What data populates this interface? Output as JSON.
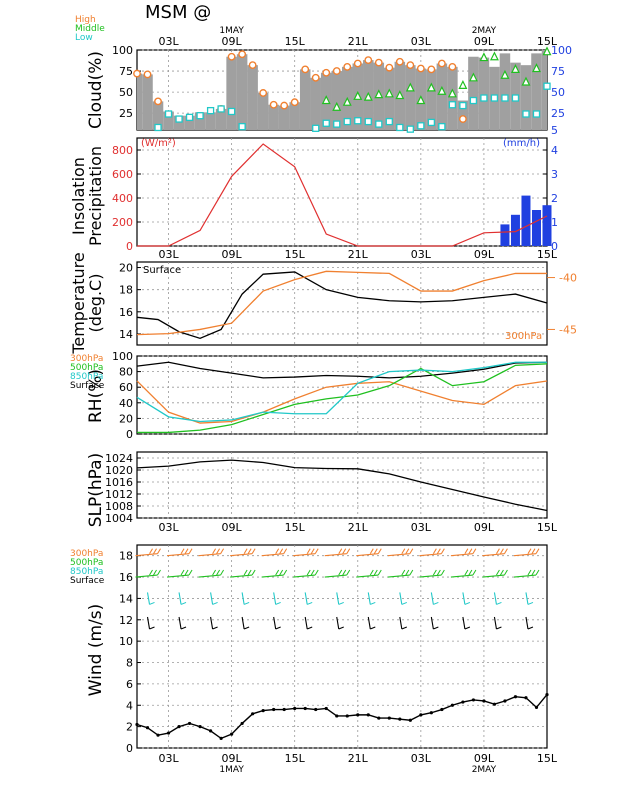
{
  "header": {
    "title": "MSM @",
    "legend": [
      {
        "label": "High",
        "color": "#f08030"
      },
      {
        "label": "Middle",
        "color": "#20c020"
      },
      {
        "label": "Low",
        "color": "#20c8c8"
      }
    ]
  },
  "time_axis": {
    "ticks": [
      "03L",
      "09L",
      "15L",
      "21L",
      "03L",
      "09L",
      "15L"
    ],
    "dates": [
      {
        "label": "1MAY",
        "at": "09L"
      },
      {
        "label": "2MAY",
        "at": "09L"
      }
    ]
  },
  "panels": {
    "cloud": {
      "ylabel": "Cloud(%)",
      "left_ticks": [
        "100",
        "75",
        "50",
        "25"
      ],
      "right_ticks": [
        "100",
        "75",
        "50",
        "25",
        "5"
      ]
    },
    "insol": {
      "ylabel1": "Insolation",
      "ylabel2": "Precipitation",
      "unit_left": "(W/m²)",
      "unit_right": "(mm/h)",
      "left_ticks": [
        "800",
        "600",
        "400",
        "200",
        "0"
      ],
      "right_ticks": [
        "4",
        "3",
        "2",
        "1",
        "0"
      ]
    },
    "temp": {
      "ylabel1": "Temperature",
      "ylabel2": "(deg.C)",
      "surface_label": "Surface",
      "p300_label": "300hPa",
      "left_ticks": [
        "20",
        "18",
        "16",
        "14"
      ],
      "right_ticks": [
        "-40",
        "-45"
      ]
    },
    "rh": {
      "ylabel": "RH(%)",
      "legend": [
        "300hPa",
        "500hPa",
        "850hPa",
        "Surface"
      ],
      "ticks": [
        "100",
        "80",
        "60",
        "40",
        "20",
        "0"
      ]
    },
    "slp": {
      "ylabel": "SLP(hPa)",
      "ticks": [
        "1024",
        "1020",
        "1016",
        "1012",
        "1008",
        "1004"
      ]
    },
    "wind": {
      "ylabel": "Wind (m/s)",
      "legend": [
        "300hPa",
        "500hPa",
        "850hPa",
        "Surface"
      ],
      "ticks": [
        "18",
        "16",
        "14",
        "12",
        "10",
        "8",
        "6",
        "4",
        "2",
        "0"
      ]
    }
  },
  "colors": {
    "high": "#f08030",
    "middle": "#20c020",
    "low": "#20c8c8",
    "insolation": "#e03030",
    "precip": "#2040e0",
    "black": "#000000",
    "cloudfill": "#a0a0a0"
  },
  "chart_data": [
    {
      "type": "area",
      "title": "Cloud(%)",
      "x_unit": "hours from 00L 30APR",
      "x": [
        0,
        1,
        2,
        3,
        4,
        5,
        6,
        7,
        8,
        9,
        10,
        11,
        12,
        13,
        14,
        15,
        16,
        17,
        18,
        19,
        20,
        21,
        22,
        23,
        24,
        25,
        26,
        27,
        28,
        29,
        30,
        31,
        32,
        33,
        34,
        35,
        36,
        37,
        38,
        39
      ],
      "series": [
        {
          "name": "Cloud total",
          "values": [
            72,
            71,
            39,
            27,
            22,
            22,
            26,
            26,
            30,
            92,
            95,
            82,
            49,
            35,
            34,
            38,
            77,
            67,
            73,
            75,
            80,
            84,
            88,
            85,
            79,
            86,
            82,
            78,
            77,
            84,
            80,
            40,
            92,
            91,
            80,
            96,
            85,
            82,
            96,
            100
          ]
        },
        {
          "name": "High",
          "values": [
            72,
            71,
            39,
            null,
            null,
            null,
            null,
            null,
            30,
            92,
            95,
            82,
            49,
            35,
            34,
            38,
            77,
            67,
            73,
            75,
            80,
            84,
            88,
            85,
            79,
            86,
            82,
            78,
            77,
            84,
            80,
            18,
            null,
            null,
            null,
            null,
            null,
            null,
            null,
            null
          ]
        },
        {
          "name": "Middle",
          "values": [
            null,
            null,
            null,
            null,
            null,
            null,
            null,
            null,
            null,
            null,
            null,
            null,
            null,
            null,
            null,
            null,
            null,
            null,
            40,
            32,
            38,
            45,
            44,
            47,
            48,
            46,
            55,
            40,
            55,
            51,
            48,
            58,
            67,
            91,
            92,
            70,
            77,
            62,
            78,
            98
          ]
        },
        {
          "name": "Low",
          "values": [
            null,
            null,
            8,
            24,
            18,
            20,
            22,
            28,
            30,
            27,
            9,
            null,
            null,
            null,
            null,
            null,
            null,
            7,
            13,
            12,
            15,
            16,
            15,
            12,
            15,
            8,
            6,
            10,
            14,
            9,
            35,
            34,
            40,
            43,
            43,
            43,
            43,
            24,
            24,
            57
          ]
        }
      ],
      "ylim": [
        5,
        100
      ]
    },
    {
      "type": "line",
      "title": "Insolation / Precipitation",
      "x_unit": "hours",
      "series": [
        {
          "name": "Insolation",
          "x": [
            0,
            3,
            6,
            9,
            12,
            15,
            18,
            21,
            24,
            30,
            33,
            36,
            39
          ],
          "values": [
            0,
            0,
            130,
            580,
            850,
            660,
            100,
            0,
            0,
            0,
            110,
            120,
            250
          ]
        },
        {
          "name": "Precipitation",
          "x": [
            35,
            36,
            37,
            38,
            39
          ],
          "values": [
            0.9,
            1.3,
            2.1,
            1.5,
            1.7
          ]
        }
      ],
      "ylim_left": [
        0,
        900
      ],
      "ylim_right": [
        0,
        4.5
      ]
    },
    {
      "type": "line",
      "title": "Temperature",
      "x_unit": "hours",
      "series": [
        {
          "name": "Surface",
          "x": [
            0,
            2,
            4,
            6,
            8,
            10,
            12,
            15,
            18,
            21,
            24,
            27,
            30,
            33,
            36,
            39
          ],
          "values": [
            15.5,
            15.3,
            14.2,
            13.6,
            14.4,
            17.6,
            19.4,
            19.6,
            18.0,
            17.3,
            17.0,
            16.9,
            17.0,
            17.3,
            17.6,
            16.8
          ]
        },
        {
          "name": "300hPa",
          "x": [
            0,
            3,
            6,
            9,
            12,
            15,
            18,
            21,
            24,
            27,
            30,
            33,
            36,
            39
          ],
          "values": [
            -45.5,
            -45.4,
            -45.0,
            -44.4,
            -41.3,
            -40.2,
            -39.4,
            -39.5,
            -39.6,
            -41.3,
            -41.3,
            -40.3,
            -39.6,
            -39.6
          ]
        }
      ],
      "ylim": [
        13,
        20.5
      ]
    },
    {
      "type": "line",
      "title": "RH(%)",
      "x_unit": "hours",
      "series": [
        {
          "name": "Surface",
          "x": [
            0,
            3,
            6,
            9,
            12,
            15,
            18,
            21,
            24,
            27,
            30,
            33,
            36,
            39
          ],
          "values": [
            87,
            92,
            84,
            78,
            72,
            73,
            75,
            74,
            72,
            74,
            78,
            83,
            91,
            92
          ]
        },
        {
          "name": "300hPa",
          "x": [
            0,
            3,
            6,
            9,
            12,
            15,
            18,
            21,
            24,
            27,
            30,
            33,
            36,
            39
          ],
          "values": [
            68,
            28,
            14,
            16,
            28,
            45,
            60,
            65,
            67,
            55,
            43,
            38,
            62,
            68
          ]
        },
        {
          "name": "500hPa",
          "x": [
            0,
            3,
            6,
            9,
            12,
            15,
            18,
            21,
            24,
            27,
            30,
            33,
            36,
            39
          ],
          "values": [
            2,
            2,
            5,
            12,
            25,
            38,
            45,
            50,
            62,
            84,
            62,
            67,
            88,
            90
          ]
        },
        {
          "name": "850hPa",
          "x": [
            0,
            3,
            6,
            9,
            12,
            15,
            18,
            21,
            24,
            27,
            30,
            33,
            36,
            39
          ],
          "values": [
            47,
            22,
            16,
            18,
            28,
            26,
            26,
            65,
            80,
            82,
            80,
            85,
            92,
            92
          ]
        }
      ],
      "ylim": [
        0,
        100
      ]
    },
    {
      "type": "line",
      "title": "SLP(hPa)",
      "x_unit": "hours",
      "series": [
        {
          "name": "SLP",
          "x": [
            0,
            3,
            6,
            9,
            12,
            15,
            18,
            21,
            24,
            27,
            30,
            33,
            36,
            39
          ],
          "values": [
            1020.7,
            1021.3,
            1022.7,
            1023.3,
            1022.5,
            1020.8,
            1020.5,
            1020.4,
            1018.7,
            1016.0,
            1013.5,
            1011.0,
            1008.6,
            1006.5
          ]
        }
      ],
      "ylim": [
        1004,
        1026
      ]
    },
    {
      "type": "line",
      "title": "Wind (m/s)",
      "x_unit": "hours",
      "series": [
        {
          "name": "Surface wind speed",
          "x": [
            0,
            1,
            2,
            3,
            4,
            5,
            6,
            7,
            8,
            9,
            10,
            11,
            12,
            13,
            14,
            15,
            16,
            17,
            18,
            19,
            20,
            21,
            22,
            23,
            24,
            25,
            26,
            27,
            28,
            29,
            30,
            31,
            32,
            33,
            34,
            35,
            36,
            37,
            38,
            39
          ],
          "values": [
            2.2,
            1.9,
            1.2,
            1.4,
            2.0,
            2.3,
            2.0,
            1.6,
            0.9,
            1.3,
            2.3,
            3.2,
            3.5,
            3.6,
            3.6,
            3.7,
            3.7,
            3.6,
            3.7,
            3.0,
            3.0,
            3.1,
            3.1,
            2.8,
            2.8,
            2.7,
            2.6,
            3.1,
            3.3,
            3.6,
            4.0,
            4.3,
            4.5,
            4.4,
            4.1,
            4.4,
            4.8,
            4.7,
            3.8,
            5.0
          ]
        }
      ],
      "ylim": [
        0,
        19
      ]
    }
  ]
}
